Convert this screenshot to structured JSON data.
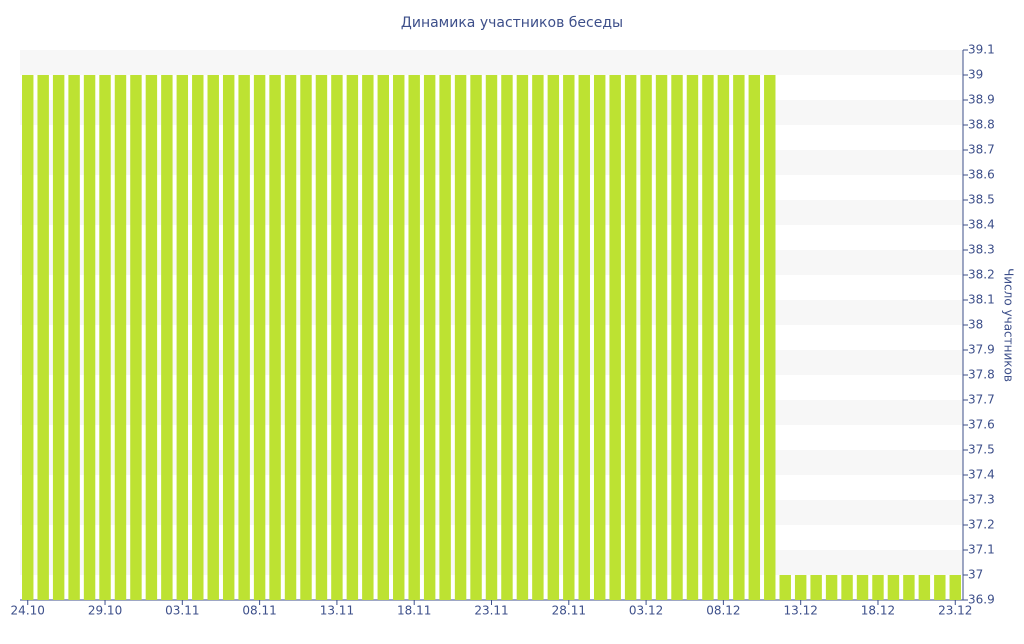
{
  "chart_data": {
    "type": "bar",
    "title": "Динамика участников беседы",
    "y_label": "Число участников",
    "categories": [
      "24.10",
      null,
      null,
      null,
      null,
      "29.10",
      null,
      null,
      null,
      null,
      "03.11",
      null,
      null,
      null,
      null,
      "08.11",
      null,
      null,
      null,
      null,
      "13.11",
      null,
      null,
      null,
      null,
      "18.11",
      null,
      null,
      null,
      null,
      "23.11",
      null,
      null,
      null,
      null,
      "28.11",
      null,
      null,
      null,
      null,
      "03.12",
      null,
      null,
      null,
      null,
      "08.12",
      null,
      null,
      null,
      null,
      "13.12",
      null,
      null,
      null,
      null,
      "18.12",
      null,
      null,
      null,
      null,
      "23.12"
    ],
    "values": [
      39,
      39,
      39,
      39,
      39,
      39,
      39,
      39,
      39,
      39,
      39,
      39,
      39,
      39,
      39,
      39,
      39,
      39,
      39,
      39,
      39,
      39,
      39,
      39,
      39,
      39,
      39,
      39,
      39,
      39,
      39,
      39,
      39,
      39,
      39,
      39,
      39,
      39,
      39,
      39,
      39,
      39,
      39,
      39,
      39,
      39,
      39,
      39,
      39,
      37,
      37,
      37,
      37,
      37,
      37,
      37,
      37,
      37,
      37,
      37,
      37
    ],
    "color": "#bde232",
    "ylim": [
      36.9,
      39.1
    ],
    "yticks": [
      36.9,
      37,
      37.1,
      37.2,
      37.3,
      37.4,
      37.5,
      37.6,
      37.7,
      37.8,
      37.9,
      38,
      38.1,
      38.2,
      38.3,
      38.4,
      38.5,
      38.6,
      38.7,
      38.8,
      38.9,
      39,
      39.1
    ],
    "grid": true
  }
}
